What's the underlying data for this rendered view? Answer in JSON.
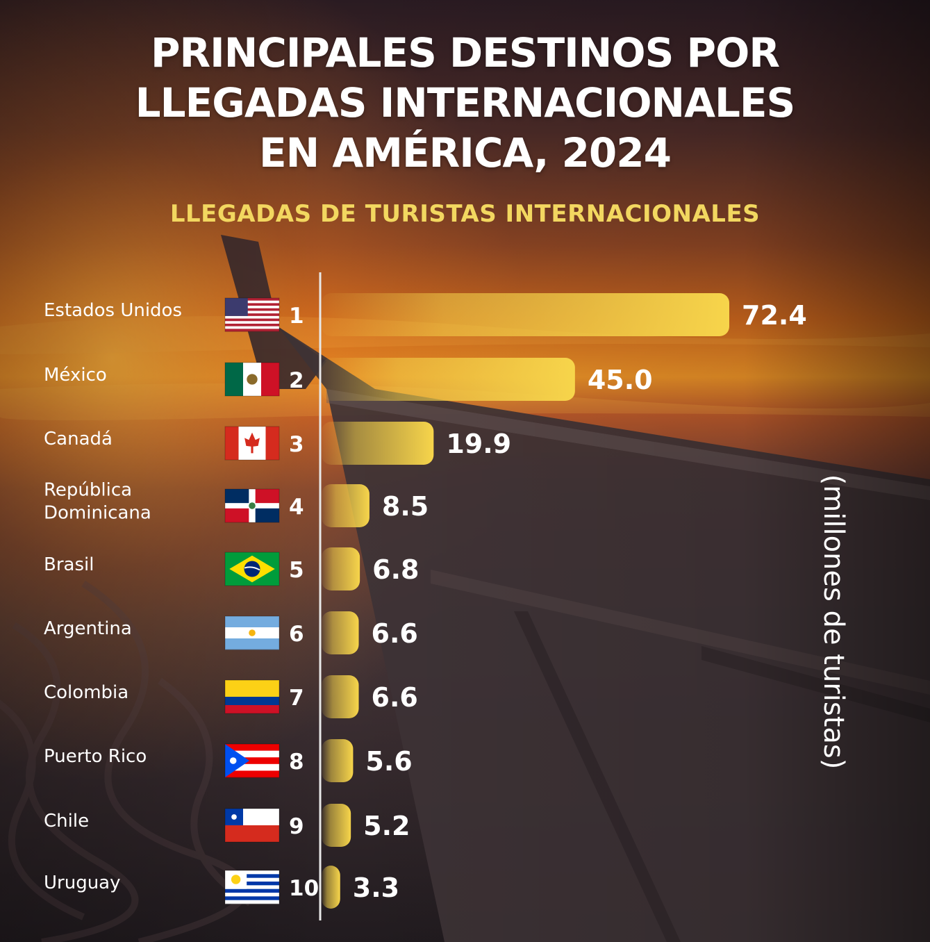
{
  "header": {
    "title_lines": [
      "PRINCIPALES DESTINOS POR",
      "LLEGADAS INTERNACIONALES",
      "EN AMÉRICA, 2024"
    ],
    "subtitle": "LLEGADAS DE TURISTAS INTERNACIONALES"
  },
  "colors": {
    "bar": "#f4d24a",
    "subtitle": "#f2d760",
    "axis": "#e8e8e8"
  },
  "chart_data": {
    "type": "bar",
    "orientation": "horizontal",
    "title": "PRINCIPALES DESTINOS POR LLEGADAS INTERNACIONALES EN AMÉRICA, 2024",
    "subtitle": "LLEGADAS DE TURISTAS INTERNACIONALES",
    "unit_label": "(millones de turistas)",
    "xlim": [
      0,
      72.4
    ],
    "grid": false,
    "categories": [
      {
        "rank": "1",
        "lines": [
          "Estados Unidos"
        ],
        "flag": "us-flag-icon"
      },
      {
        "rank": "2",
        "lines": [
          "México"
        ],
        "flag": "mexico-flag-icon"
      },
      {
        "rank": "3",
        "lines": [
          "Canadá"
        ],
        "flag": "canada-flag-icon"
      },
      {
        "rank": "4",
        "lines": [
          "República",
          "Dominicana"
        ],
        "flag": "dominican-republic-flag-icon"
      },
      {
        "rank": "5",
        "lines": [
          "Brasil"
        ],
        "flag": "brazil-flag-icon"
      },
      {
        "rank": "6",
        "lines": [
          "Argentina"
        ],
        "flag": "argentina-flag-icon"
      },
      {
        "rank": "7",
        "lines": [
          "Colombia"
        ],
        "flag": "colombia-flag-icon"
      },
      {
        "rank": "8",
        "lines": [
          "Puerto Rico"
        ],
        "flag": "puerto-rico-flag-icon"
      },
      {
        "rank": "9",
        "lines": [
          "Chile"
        ],
        "flag": "chile-flag-icon"
      },
      {
        "rank": "10",
        "lines": [
          "Uruguay"
        ],
        "flag": "uruguay-flag-icon"
      }
    ],
    "values": [
      72.4,
      45.0,
      19.9,
      8.5,
      6.8,
      6.6,
      6.6,
      5.6,
      5.2,
      3.3
    ],
    "value_labels": [
      "72.4",
      "45.0",
      "19.9",
      "8.5",
      "6.8",
      "6.6",
      "6.6",
      "5.6",
      "5.2",
      "3.3"
    ]
  }
}
